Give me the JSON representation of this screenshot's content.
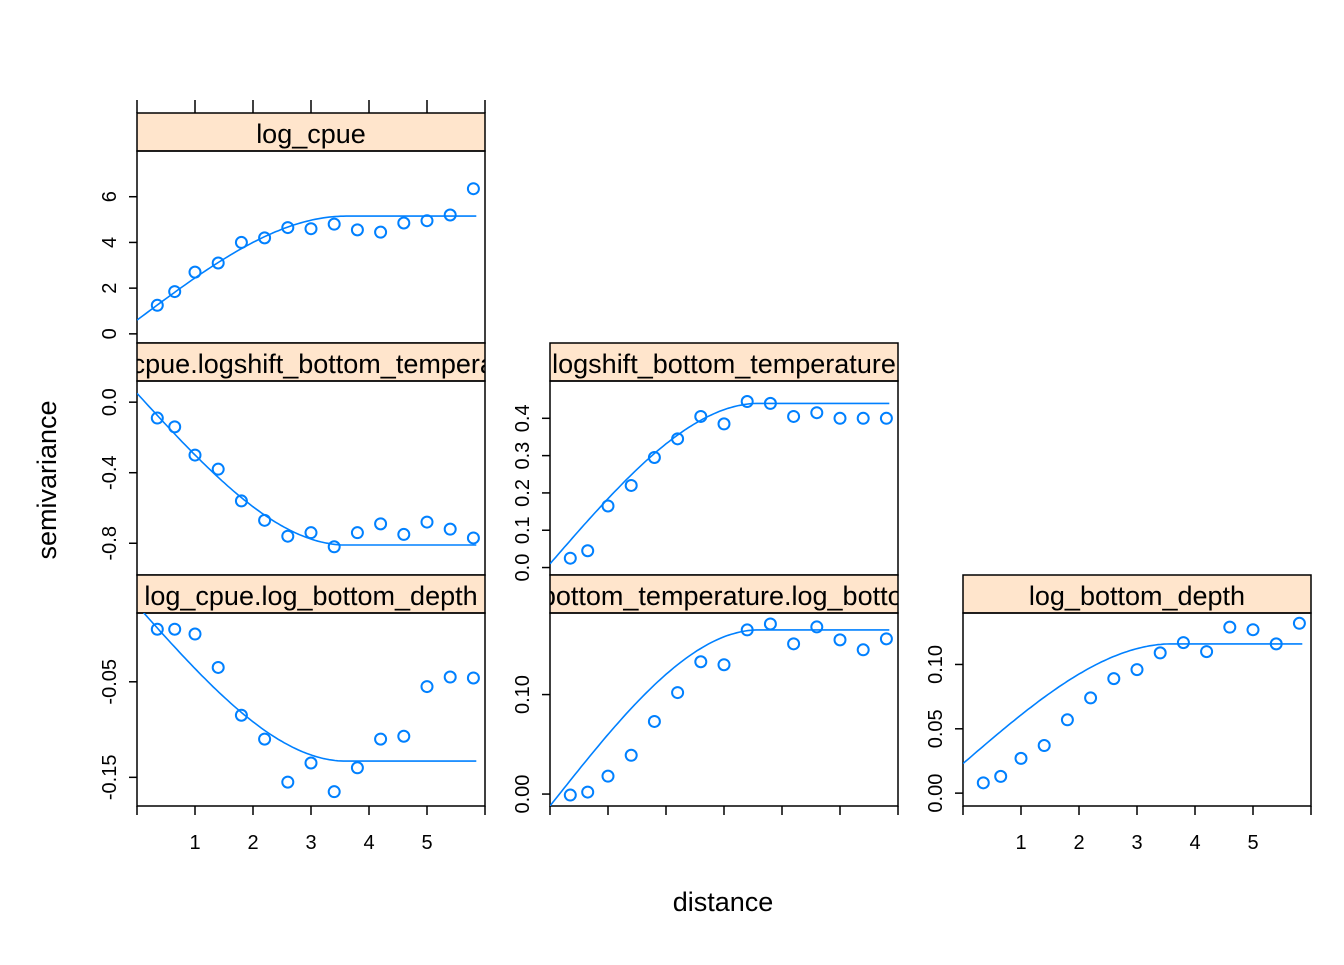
{
  "axes": {
    "xlabel": "distance",
    "ylabel": "semivariance"
  },
  "colors": {
    "series": "#0080ff",
    "strip_background": "#ffe5cc",
    "frame": "#000000"
  },
  "chart_data": [
    {
      "type": "scatter",
      "title": "log_cpue",
      "x": [
        0.35,
        0.65,
        1.0,
        1.4,
        1.8,
        2.2,
        2.6,
        3.0,
        3.4,
        3.8,
        4.2,
        4.6,
        5.0,
        5.4,
        5.8
      ],
      "y": [
        1.25,
        1.85,
        2.7,
        3.1,
        4.0,
        4.2,
        4.65,
        4.6,
        4.8,
        4.55,
        4.45,
        4.85,
        4.95,
        5.2,
        6.35
      ],
      "fit": {
        "nugget": 0.6,
        "sill": 5.15,
        "range": 3.6
      },
      "xlim": [
        0,
        6
      ],
      "ylim": [
        -0.4,
        8.0
      ],
      "yticks": [
        "0",
        "2",
        "4",
        "6"
      ],
      "xticks": [],
      "series": [
        {
          "name": "log_cpue"
        }
      ]
    },
    {
      "type": "scatter",
      "title": "log_cpue.logshift_bottom_temperature",
      "x": [
        0.35,
        0.65,
        1.0,
        1.4,
        1.8,
        2.2,
        2.6,
        3.0,
        3.4,
        3.8,
        4.2,
        4.6,
        5.0,
        5.4,
        5.8
      ],
      "y": [
        -0.09,
        -0.14,
        -0.3,
        -0.38,
        -0.56,
        -0.67,
        -0.76,
        -0.74,
        -0.82,
        -0.74,
        -0.69,
        -0.75,
        -0.68,
        -0.72,
        -0.77
      ],
      "fit": {
        "nugget": 0.05,
        "sill": -0.81,
        "range": 3.6
      },
      "xlim": [
        0,
        6
      ],
      "ylim": [
        -0.98,
        0.12
      ],
      "yticks": [
        "0.0",
        "-0.4",
        "-0.8"
      ],
      "xticks": []
    },
    {
      "type": "scatter",
      "title": "logshift_bottom_temperature",
      "x": [
        0.35,
        0.65,
        1.0,
        1.4,
        1.8,
        2.2,
        2.6,
        3.0,
        3.4,
        3.8,
        4.2,
        4.6,
        5.0,
        5.4,
        5.8
      ],
      "y": [
        0.025,
        0.045,
        0.165,
        0.22,
        0.295,
        0.345,
        0.405,
        0.385,
        0.445,
        0.44,
        0.405,
        0.415,
        0.4,
        0.4,
        0.4
      ],
      "fit": {
        "nugget": 0.01,
        "sill": 0.44,
        "range": 3.6
      },
      "xlim": [
        0,
        6
      ],
      "ylim": [
        -0.02,
        0.5
      ],
      "yticks": [
        "0.0",
        "0.1",
        "0.2",
        "0.3",
        "0.4"
      ],
      "xticks": []
    },
    {
      "type": "scatter",
      "title": "log_cpue.log_bottom_depth",
      "x": [
        0.35,
        0.65,
        1.0,
        1.4,
        1.8,
        2.2,
        2.6,
        3.0,
        3.4,
        3.8,
        4.2,
        4.6,
        5.0,
        5.4,
        5.8
      ],
      "y": [
        0.005,
        0.005,
        0.0,
        -0.035,
        -0.085,
        -0.11,
        -0.155,
        -0.135,
        -0.165,
        -0.14,
        -0.11,
        -0.107,
        -0.055,
        -0.045,
        -0.046
      ],
      "fit": {
        "nugget": 0.03,
        "sill": -0.133,
        "range": 3.6
      },
      "xlim": [
        0,
        6
      ],
      "ylim": [
        -0.18,
        0.022
      ],
      "yticks": [
        "-0.05",
        "-0.15"
      ],
      "xticks": [
        "1",
        "2",
        "3",
        "4",
        "5"
      ]
    },
    {
      "type": "scatter",
      "title": "logshift_bottom_temperature.log_bottom_depth",
      "x": [
        0.35,
        0.65,
        1.0,
        1.4,
        1.8,
        2.2,
        2.6,
        3.0,
        3.4,
        3.8,
        4.2,
        4.6,
        5.0,
        5.4,
        5.8
      ],
      "y": [
        -0.001,
        0.002,
        0.018,
        0.039,
        0.073,
        0.102,
        0.133,
        0.13,
        0.165,
        0.171,
        0.151,
        0.168,
        0.155,
        0.145,
        0.156
      ],
      "fit": {
        "nugget": -0.012,
        "sill": 0.165,
        "range": 3.6
      },
      "xlim": [
        0,
        6
      ],
      "ylim": [
        -0.012,
        0.182
      ],
      "yticks": [
        "0.00",
        "0.10"
      ],
      "xticks": []
    },
    {
      "type": "scatter",
      "title": "log_bottom_depth",
      "x": [
        0.35,
        0.65,
        1.0,
        1.4,
        1.8,
        2.2,
        2.6,
        3.0,
        3.4,
        3.8,
        4.2,
        4.6,
        5.0,
        5.4,
        5.8
      ],
      "y": [
        0.008,
        0.013,
        0.027,
        0.037,
        0.057,
        0.074,
        0.089,
        0.096,
        0.109,
        0.117,
        0.11,
        0.129,
        0.127,
        0.116,
        0.132
      ],
      "fit": {
        "nugget": 0.023,
        "sill": 0.116,
        "range": 3.6
      },
      "xlim": [
        0,
        6
      ],
      "ylim": [
        -0.01,
        0.14
      ],
      "yticks": [
        "0.00",
        "0.05",
        "0.10"
      ],
      "xticks": [
        "1",
        "2",
        "3",
        "4",
        "5"
      ]
    }
  ]
}
